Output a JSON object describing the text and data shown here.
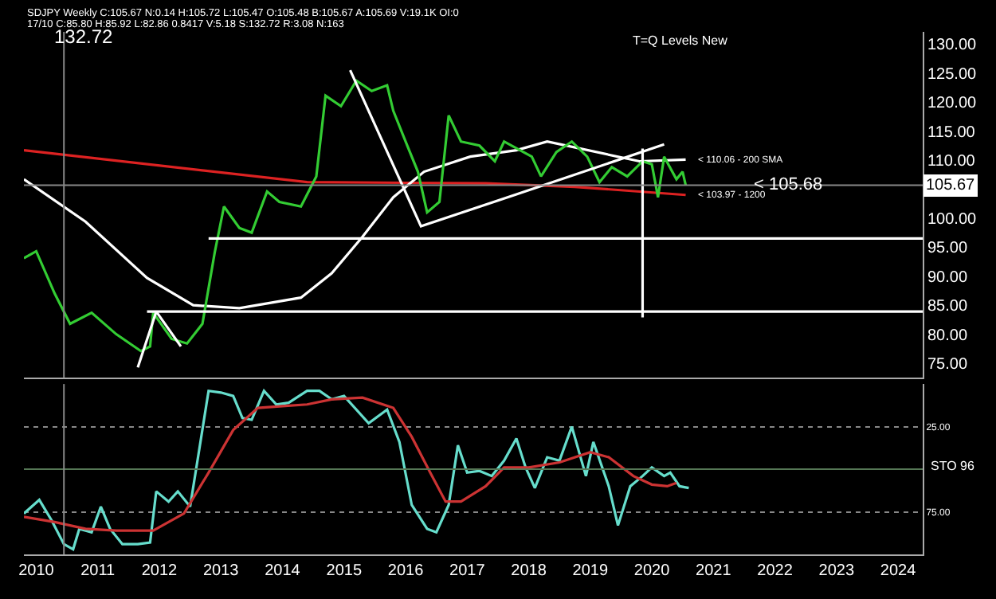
{
  "chart_data": [
    {
      "type": "line",
      "xlim": [
        2009.8,
        2024.4
      ],
      "ylim": [
        72.5,
        132.1
      ],
      "xticks": [
        2010,
        2011,
        2012,
        2013,
        2014,
        2015,
        2016,
        2017,
        2018,
        2019,
        2020,
        2021,
        2022,
        2023,
        2024
      ],
      "yticks": [
        {
          "value": 75,
          "label": "75.00"
        },
        {
          "value": 80,
          "label": "80.00"
        },
        {
          "value": 85,
          "label": "85.00"
        },
        {
          "value": 90,
          "label": "90.00"
        },
        {
          "value": 95,
          "label": "95.00"
        },
        {
          "value": 100,
          "label": "100.00"
        },
        {
          "value": 105,
          "label": null
        },
        {
          "value": 110,
          "label": "110.00"
        },
        {
          "value": 115,
          "label": "115.00"
        },
        {
          "value": 120,
          "label": "120.00"
        },
        {
          "value": 125,
          "label": "125.00"
        },
        {
          "value": 130,
          "label": "130.00"
        }
      ],
      "tick_labels": "y",
      "grid": false,
      "marker": "none",
      "series": [
        {
          "color": "#dd2222",
          "x": [
            2009.8,
            2014.4,
            2017.3,
            2018.75,
            2020.55
          ],
          "values": [
            111.7,
            106.2,
            106,
            105.4,
            104
          ]
        },
        {
          "color": "#ffffff",
          "x": [
            2009.8,
            2010.8,
            2011.8,
            2012.55,
            2013.3,
            2014.3,
            2014.8,
            2015.3,
            2015.8,
            2016.3,
            2017.05,
            2017.8,
            2018.3,
            2019.8,
            2020.55
          ],
          "values": [
            106.7,
            99.4,
            89.7,
            85,
            84.5,
            86.3,
            90.5,
            96.8,
            103.6,
            108,
            110.6,
            111.7,
            113.2,
            109.8,
            110.1
          ]
        },
        {
          "color": "#33cc33",
          "x": [
            2009.8,
            2010,
            2010.3,
            2010.55,
            2010.9,
            2011.3,
            2011.7,
            2011.85,
            2011.9,
            2012.2,
            2012.45,
            2012.7,
            2012.9,
            2013.05,
            2013.3,
            2013.5,
            2013.75,
            2013.95,
            2014.3,
            2014.55,
            2014.7,
            2014.95,
            2015.2,
            2015.45,
            2015.7,
            2015.8,
            2016,
            2016.2,
            2016.35,
            2016.55,
            2016.7,
            2016.9,
            2017.2,
            2017.45,
            2017.6,
            2018.05,
            2018.2,
            2018.45,
            2018.7,
            2018.95,
            2019.15,
            2019.35,
            2019.6,
            2019.85,
            2020,
            2020.1,
            2020.2,
            2020.4,
            2020.5,
            2020.55
          ],
          "values": [
            93.1,
            94.3,
            87,
            81.8,
            83.7,
            80,
            77.1,
            77.9,
            83.7,
            79.2,
            78.4,
            81.8,
            94.1,
            102,
            98.3,
            97.5,
            104.6,
            102.8,
            102,
            107.2,
            121.1,
            119.3,
            123.7,
            121.9,
            122.9,
            118.5,
            113.2,
            108,
            101,
            102.8,
            117.7,
            113.2,
            112.5,
            109.8,
            113.2,
            110.6,
            107.2,
            111.4,
            113.2,
            110.6,
            106.2,
            108.8,
            107.2,
            109.8,
            109.3,
            103.6,
            110.6,
            106.7,
            108,
            105.7
          ]
        },
        {
          "color": "#ffffff",
          "x": [
            2011.65,
            2011.95,
            2012.35
          ],
          "values": [
            74.3,
            83.9,
            77.9
          ]
        },
        {
          "color": "#ffffff",
          "x": [
            2015.1,
            2016.25,
            2017.8,
            2020.2
          ],
          "values": [
            125.5,
            98.6,
            104.1,
            112.7
          ]
        },
        {
          "color": "#ffffff",
          "x": [
            2012.8,
            2024.4
          ],
          "values": [
            96.5,
            96.5
          ]
        },
        {
          "color": "#ffffff",
          "x": [
            2011.8,
            2024.4
          ],
          "values": [
            83.9,
            83.9
          ]
        },
        {
          "color": "#ffffff",
          "x": [
            2019.85,
            2019.85
          ],
          "values": [
            112,
            82.9
          ]
        }
      ],
      "ref_lines": [
        {
          "axis": "y",
          "value": 105.67,
          "label": "105.67",
          "color": "#888888"
        },
        {
          "axis": "x",
          "value": 2010.45,
          "color": "#888888"
        }
      ],
      "annotations": [
        "SDJPY Weekly C:105.67 N:0.14 H:105.72 L:105.47 O:105.48 B:105.67 A:105.69 V:19.1K OI:0",
        "17/10 C:85.80 H:85.92 L:82.86 0.8417 V:5.18 S:132.72 R:3.08 N:163",
        "132.72",
        "T=Q Levels New",
        "< 110.06 - 200 SMA",
        "< 103.97 - 1200",
        {
          "text": "< 105.68",
          "x": 2021.6,
          "y": 105.68
        }
      ]
    },
    {
      "type": "line",
      "xlim": [
        2009.8,
        2024.4
      ],
      "ylim": [
        100,
        0
      ],
      "xticks": [
        2010,
        2011,
        2012,
        2013,
        2014,
        2015,
        2016,
        2017,
        2018,
        2019,
        2020,
        2021,
        2022,
        2023,
        2024
      ],
      "yticks": [
        {
          "value": 25,
          "label": "25.00"
        },
        {
          "value": 75,
          "label": "75.00"
        }
      ],
      "grid": "y",
      "marker": "none",
      "series": [
        {
          "color": "#66ddcc",
          "x": [
            2009.8,
            2010.05,
            2010.25,
            2010.45,
            2010.6,
            2010.7,
            2010.9,
            2011.05,
            2011.2,
            2011.4,
            2011.65,
            2011.85,
            2011.95,
            2012.15,
            2012.3,
            2012.5,
            2012.65,
            2012.8,
            2013,
            2013.2,
            2013.35,
            2013.5,
            2013.7,
            2013.9,
            2014.1,
            2014.4,
            2014.6,
            2014.8,
            2015,
            2015.4,
            2015.7,
            2015.9,
            2016.1,
            2016.35,
            2016.5,
            2016.7,
            2016.85,
            2017,
            2017.2,
            2017.4,
            2017.6,
            2017.8,
            2017.95,
            2018.1,
            2018.3,
            2018.5,
            2018.7,
            2018.93,
            2019.05,
            2019.3,
            2019.45,
            2019.65,
            2019.85,
            2020,
            2020.2,
            2020.3,
            2020.45,
            2020.6
          ],
          "values": [
            76,
            68,
            80,
            94,
            97,
            85,
            87,
            72,
            85,
            94,
            94,
            93,
            63,
            69,
            63,
            72,
            38,
            4,
            5,
            7,
            20,
            21,
            4,
            12,
            11,
            4,
            4,
            9,
            7,
            23,
            15,
            34,
            71,
            85,
            87,
            71,
            36,
            52,
            51,
            54,
            45,
            32,
            49,
            61,
            43,
            45,
            25,
            54,
            34,
            60,
            83,
            60,
            54,
            49,
            54,
            52,
            60,
            61
          ]
        },
        {
          "color": "#cc3333",
          "x": [
            2009.8,
            2010.3,
            2010.8,
            2011.3,
            2011.9,
            2012.4,
            2012.8,
            2013.2,
            2013.6,
            2014,
            2014.4,
            2014.8,
            2015.3,
            2015.8,
            2016.1,
            2016.4,
            2016.65,
            2016.9,
            2017.3,
            2017.6,
            2018,
            2018.5,
            2019,
            2019.3,
            2019.7,
            2020,
            2020.25,
            2020.4
          ],
          "values": [
            78,
            81,
            85,
            86,
            86,
            76,
            52,
            27,
            14,
            13,
            12,
            9,
            8,
            14,
            31,
            52,
            69,
            69,
            60,
            49,
            49,
            46,
            40,
            43,
            54,
            59,
            60,
            58
          ]
        }
      ],
      "ref_lines": [
        {
          "axis": "y",
          "value": 50,
          "color": "#557755"
        },
        {
          "axis": "x",
          "value": 2010.45,
          "color": "#888888"
        }
      ],
      "annotations": [
        "STO 96"
      ]
    }
  ]
}
